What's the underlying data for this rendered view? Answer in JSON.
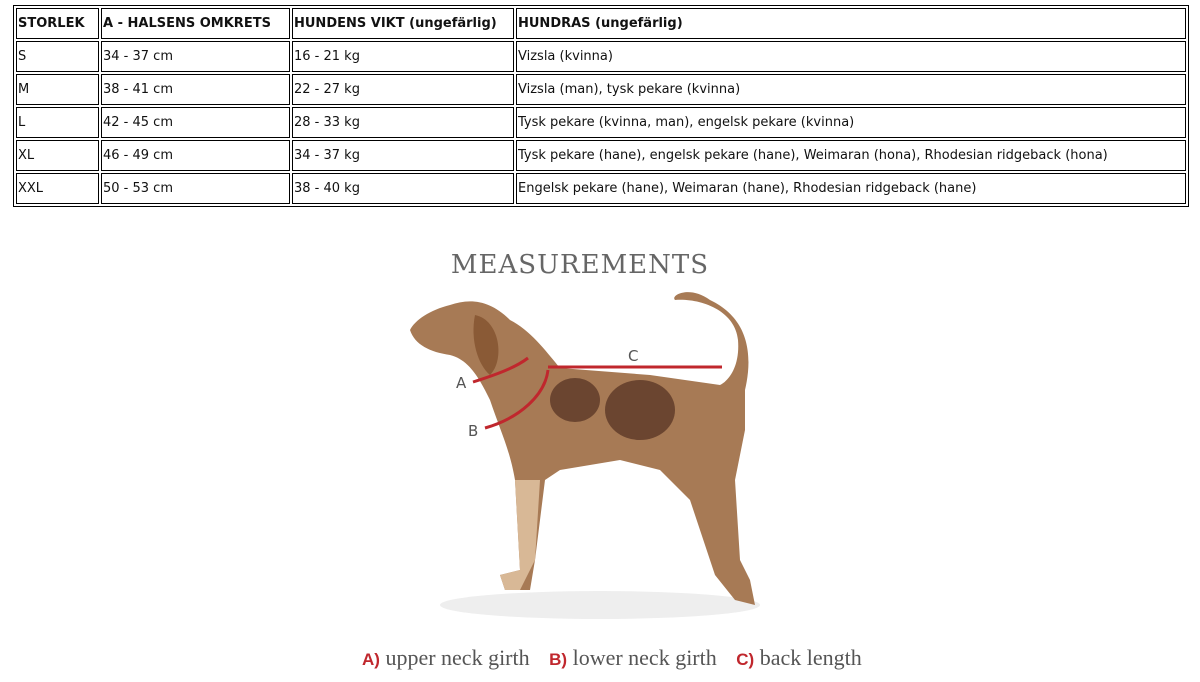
{
  "table": {
    "headers": [
      "STORLEK",
      "A - HALSENS OMKRETS",
      "HUNDENS VIKT (ungefärlig)",
      "HUNDRAS (ungefärlig)"
    ],
    "rows": [
      [
        "S",
        "34 - 37 cm",
        "16 - 21 kg",
        "Vizsla (kvinna)"
      ],
      [
        "M",
        "38 - 41 cm",
        "22 - 27 kg",
        "Vizsla (man), tysk pekare (kvinna)"
      ],
      [
        "L",
        "42 - 45 cm",
        "28 - 33 kg",
        "Tysk pekare (kvinna, man), engelsk pekare (kvinna)"
      ],
      [
        "XL",
        "46 - 49 cm",
        "34 - 37 kg",
        "Tysk pekare (hane), engelsk pekare (hane), Weimaran (hona), Rhodesian ridgeback (hona)"
      ],
      [
        "XXL",
        "50 - 53 cm",
        "38 - 40 kg",
        "Engelsk pekare (hane), Weimaran (hane), Rhodesian ridgeback (hane)"
      ]
    ]
  },
  "figure": {
    "title": "MEASUREMENTS",
    "markers": {
      "a": "A",
      "b": "B",
      "c": "C"
    },
    "legend": [
      {
        "key": "A)",
        "label": "upper neck girth"
      },
      {
        "key": "B)",
        "label": "lower neck girth"
      },
      {
        "key": "C)",
        "label": "back length"
      }
    ],
    "accent": "#c0272d"
  }
}
